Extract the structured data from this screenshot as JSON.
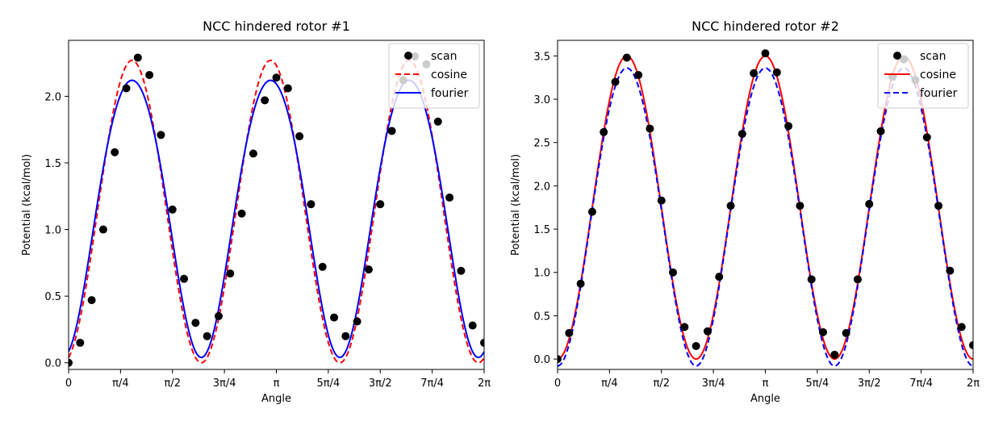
{
  "chart_data": [
    {
      "type": "line",
      "title": "NCC hindered rotor #1",
      "xlabel": "Angle",
      "ylabel": "Potential (kcal/mol)",
      "xlim": [
        0,
        6.2832
      ],
      "ylim": [
        -0.05,
        2.42
      ],
      "xticks": [
        0,
        0.7854,
        1.5708,
        2.3562,
        3.1416,
        3.927,
        4.7124,
        5.4978,
        6.2832
      ],
      "xtick_labels": [
        "0",
        "π/4",
        "π/2",
        "3π/4",
        "π",
        "5π/4",
        "3π/2",
        "7π/4",
        "2π"
      ],
      "yticks": [
        0.0,
        0.5,
        1.0,
        1.5,
        2.0
      ],
      "ytick_labels": [
        "0.0",
        "0.5",
        "1.0",
        "1.5",
        "2.0"
      ],
      "legend": {
        "position": "top-right",
        "entries": [
          "scan",
          "cosine",
          "fourier"
        ]
      },
      "series": [
        {
          "name": "scan",
          "style": "points",
          "color": "#000000",
          "x": [
            0.0,
            0.1745,
            0.349,
            0.5236,
            0.6981,
            0.8727,
            1.0472,
            1.2217,
            1.3963,
            1.5708,
            1.7453,
            1.9199,
            2.0944,
            2.2689,
            2.4435,
            2.618,
            2.7925,
            2.967,
            3.1416,
            3.3161,
            3.4907,
            3.6652,
            3.8397,
            4.0143,
            4.1888,
            4.3633,
            4.5379,
            4.7124,
            4.8869,
            5.0615,
            5.236,
            5.4105,
            5.5851,
            5.7596,
            5.9341,
            6.1087,
            6.2832
          ],
          "y": [
            0.0,
            0.15,
            0.47,
            1.0,
            1.58,
            2.06,
            2.29,
            2.16,
            1.71,
            1.15,
            0.63,
            0.3,
            0.2,
            0.35,
            0.67,
            1.12,
            1.57,
            1.97,
            2.14,
            2.06,
            1.7,
            1.19,
            0.72,
            0.34,
            0.2,
            0.31,
            0.7,
            1.19,
            1.74,
            2.12,
            2.3,
            2.24,
            1.81,
            1.24,
            0.69,
            0.28,
            0.15
          ]
        },
        {
          "name": "cosine",
          "style": "dashed",
          "color": "#ff0000",
          "formula": "A/2*(1-cos(3*(x+phi)))",
          "params": {
            "A": 2.27,
            "phi": 0.0873
          }
        },
        {
          "name": "fourier",
          "style": "solid",
          "color": "#0000ff",
          "formula": "c0 - c1*cos(3*(x+phi)) + c2*cos(6*(x+phi))",
          "params": {
            "c0": 1.16,
            "c1": 1.04,
            "c2": -0.06,
            "phi": 0.0873,
            "shift": -0.02
          }
        }
      ]
    },
    {
      "type": "line",
      "title": "NCC hindered rotor #2",
      "xlabel": "Angle",
      "ylabel": "Potential (kcal/mol)",
      "xlim": [
        0,
        6.2832
      ],
      "ylim": [
        -0.12,
        3.68
      ],
      "xticks": [
        0,
        0.7854,
        1.5708,
        2.3562,
        3.1416,
        3.927,
        4.7124,
        5.4978,
        6.2832
      ],
      "xtick_labels": [
        "0",
        "π/4",
        "π/2",
        "3π/4",
        "π",
        "5π/4",
        "3π/2",
        "7π/4",
        "2π"
      ],
      "yticks": [
        0.0,
        0.5,
        1.0,
        1.5,
        2.0,
        2.5,
        3.0,
        3.5
      ],
      "ytick_labels": [
        "0.0",
        "0.5",
        "1.0",
        "1.5",
        "2.0",
        "2.5",
        "3.0",
        "3.5"
      ],
      "legend": {
        "position": "top-right",
        "entries": [
          "scan",
          "cosine",
          "fourier"
        ]
      },
      "series": [
        {
          "name": "scan",
          "style": "points",
          "color": "#000000",
          "x": [
            0.0,
            0.1745,
            0.349,
            0.5236,
            0.6981,
            0.8727,
            1.0472,
            1.2217,
            1.3963,
            1.5708,
            1.7453,
            1.9199,
            2.0944,
            2.2689,
            2.4435,
            2.618,
            2.7925,
            2.967,
            3.1416,
            3.3161,
            3.4907,
            3.6652,
            3.8397,
            4.0143,
            4.1888,
            4.3633,
            4.5379,
            4.7124,
            4.8869,
            5.0615,
            5.236,
            5.4105,
            5.5851,
            5.7596,
            5.9341,
            6.1087,
            6.2832
          ],
          "y": [
            0.0,
            0.3,
            0.87,
            1.7,
            2.62,
            3.2,
            3.48,
            3.28,
            2.66,
            1.83,
            1.0,
            0.37,
            0.15,
            0.32,
            0.95,
            1.77,
            2.6,
            3.3,
            3.53,
            3.31,
            2.69,
            1.77,
            0.92,
            0.31,
            0.05,
            0.3,
            0.92,
            1.79,
            2.63,
            3.26,
            3.46,
            3.22,
            2.56,
            1.77,
            1.02,
            0.37,
            0.16
          ]
        },
        {
          "name": "cosine",
          "style": "solid",
          "color": "#ff0000",
          "formula": "A/2*(1-cos(3*x))",
          "params": {
            "A": 3.5
          }
        },
        {
          "name": "fourier",
          "style": "dashed",
          "color": "#0000ff",
          "formula": "c0 - c1*cos(3*x) + c2*cos(6*x)",
          "params": {
            "c0": 1.68,
            "c1": 1.72,
            "c2": -0.04
          }
        }
      ]
    }
  ]
}
